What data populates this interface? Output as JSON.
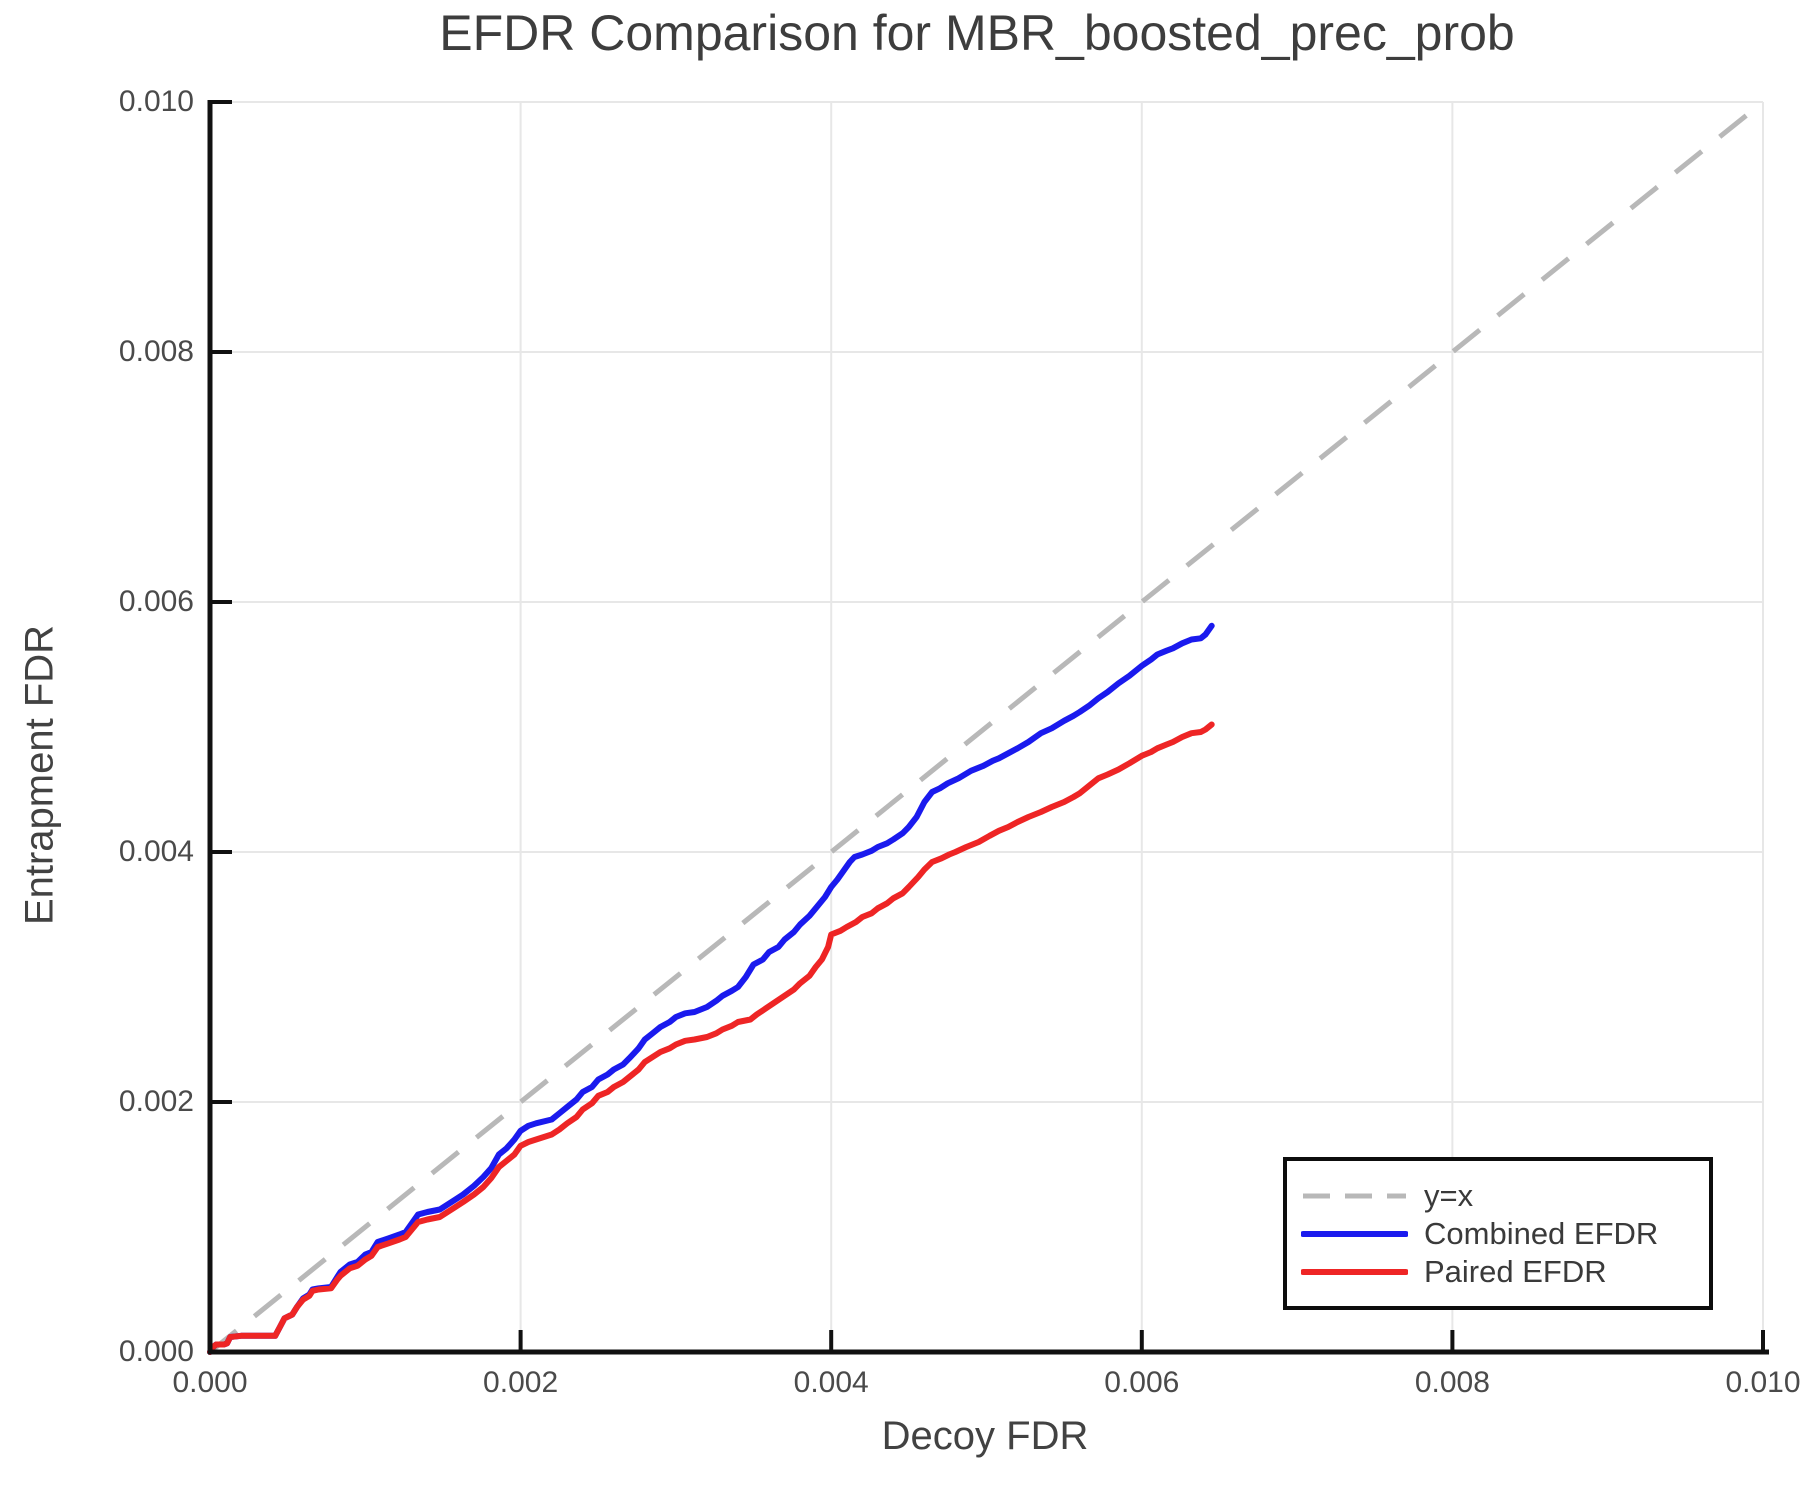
{
  "chart_data": {
    "type": "line",
    "title": "EFDR Comparison for MBR_boosted_prec_prob",
    "xlabel": "Decoy FDR",
    "ylabel": "Entrapment FDR",
    "xlim": [
      0.0,
      0.01
    ],
    "ylim": [
      0.0,
      0.01
    ],
    "xticks": [
      0.0,
      0.002,
      0.004,
      0.006,
      0.008,
      0.01
    ],
    "xtick_labels": [
      "0.000",
      "0.002",
      "0.004",
      "0.006",
      "0.008",
      "0.010"
    ],
    "yticks": [
      0.0,
      0.002,
      0.004,
      0.006,
      0.008,
      0.01
    ],
    "ytick_labels": [
      "0.000",
      "0.002",
      "0.004",
      "0.006",
      "0.008",
      "0.010"
    ],
    "grid": true,
    "legend_position": "lower right",
    "colors": {
      "grid": "#e7e7e7",
      "axis": "#111111",
      "text": "#4a4a4a"
    },
    "reference_line": {
      "label": "y=x",
      "style": "dashed",
      "color": "#b8b8b8",
      "from": [
        0.0,
        0.0
      ],
      "to": [
        0.01,
        0.01
      ]
    },
    "legend": [
      {
        "label": "y=x",
        "color": "#b8b8b8",
        "dashed": true
      },
      {
        "label": "Combined EFDR",
        "color": "#1a1aee",
        "dashed": false
      },
      {
        "label": "Paired EFDR",
        "color": "#ee2525",
        "dashed": false
      }
    ],
    "series": [
      {
        "name": "Combined EFDR",
        "color": "#1a1aee",
        "points": [
          [
            0.0,
            0.0
          ],
          [
            2e-05,
            4e-05
          ],
          [
            4e-05,
            6e-05
          ],
          [
            9e-05,
            6e-05
          ],
          [
            0.00011,
            7e-05
          ],
          [
            0.00013,
            0.00012
          ],
          [
            0.0002,
            0.00013
          ],
          [
            0.00042,
            0.00013
          ],
          [
            0.00045,
            0.0002
          ],
          [
            0.00048,
            0.00027
          ],
          [
            0.00053,
            0.0003
          ],
          [
            0.00056,
            0.00036
          ],
          [
            0.0006,
            0.00043
          ],
          [
            0.00064,
            0.00046
          ],
          [
            0.00066,
            0.0005
          ],
          [
            0.0007,
            0.00051
          ],
          [
            0.00078,
            0.00052
          ],
          [
            0.00082,
            0.0006
          ],
          [
            0.00084,
            0.00064
          ],
          [
            0.0009,
            0.0007
          ],
          [
            0.00095,
            0.00072
          ],
          [
            0.001,
            0.00078
          ],
          [
            0.00104,
            0.0008
          ],
          [
            0.00108,
            0.00088
          ],
          [
            0.00115,
            0.00091
          ],
          [
            0.00122,
            0.00094
          ],
          [
            0.00126,
            0.00096
          ],
          [
            0.0013,
            0.00103
          ],
          [
            0.00134,
            0.0011
          ],
          [
            0.0014,
            0.00112
          ],
          [
            0.00148,
            0.00114
          ],
          [
            0.00153,
            0.00118
          ],
          [
            0.00158,
            0.00122
          ],
          [
            0.00163,
            0.00126
          ],
          [
            0.0017,
            0.00133
          ],
          [
            0.00176,
            0.0014
          ],
          [
            0.00181,
            0.00147
          ],
          [
            0.00186,
            0.00158
          ],
          [
            0.00191,
            0.00163
          ],
          [
            0.00196,
            0.0017
          ],
          [
            0.002,
            0.00177
          ],
          [
            0.00205,
            0.00181
          ],
          [
            0.0021,
            0.00183
          ],
          [
            0.0022,
            0.00186
          ],
          [
            0.00225,
            0.00191
          ],
          [
            0.0023,
            0.00196
          ],
          [
            0.00236,
            0.00202
          ],
          [
            0.0024,
            0.00208
          ],
          [
            0.00246,
            0.00212
          ],
          [
            0.0025,
            0.00218
          ],
          [
            0.00256,
            0.00222
          ],
          [
            0.0026,
            0.00226
          ],
          [
            0.00266,
            0.0023
          ],
          [
            0.0027,
            0.00235
          ],
          [
            0.00276,
            0.00243
          ],
          [
            0.0028,
            0.0025
          ],
          [
            0.00285,
            0.00255
          ],
          [
            0.0029,
            0.0026
          ],
          [
            0.00296,
            0.00264
          ],
          [
            0.003,
            0.00268
          ],
          [
            0.00306,
            0.00271
          ],
          [
            0.00312,
            0.00272
          ],
          [
            0.0032,
            0.00276
          ],
          [
            0.00326,
            0.00281
          ],
          [
            0.0033,
            0.00285
          ],
          [
            0.00336,
            0.00289
          ],
          [
            0.0034,
            0.00292
          ],
          [
            0.00345,
            0.003
          ],
          [
            0.0035,
            0.0031
          ],
          [
            0.00356,
            0.00314
          ],
          [
            0.0036,
            0.0032
          ],
          [
            0.00366,
            0.00324
          ],
          [
            0.0037,
            0.0033
          ],
          [
            0.00376,
            0.00336
          ],
          [
            0.0038,
            0.00342
          ],
          [
            0.00386,
            0.00349
          ],
          [
            0.0039,
            0.00355
          ],
          [
            0.00396,
            0.00364
          ],
          [
            0.004,
            0.00372
          ],
          [
            0.00404,
            0.00378
          ],
          [
            0.00408,
            0.00385
          ],
          [
            0.00412,
            0.00392
          ],
          [
            0.00415,
            0.00396
          ],
          [
            0.0042,
            0.00398
          ],
          [
            0.00426,
            0.00401
          ],
          [
            0.0043,
            0.00404
          ],
          [
            0.00436,
            0.00407
          ],
          [
            0.0044,
            0.0041
          ],
          [
            0.00446,
            0.00415
          ],
          [
            0.0045,
            0.0042
          ],
          [
            0.00455,
            0.00428
          ],
          [
            0.0046,
            0.0044
          ],
          [
            0.00465,
            0.00448
          ],
          [
            0.0047,
            0.00451
          ],
          [
            0.00475,
            0.00455
          ],
          [
            0.00482,
            0.00459
          ],
          [
            0.0049,
            0.00465
          ],
          [
            0.00498,
            0.00469
          ],
          [
            0.00504,
            0.00473
          ],
          [
            0.00508,
            0.00475
          ],
          [
            0.00514,
            0.00479
          ],
          [
            0.0052,
            0.00483
          ],
          [
            0.00527,
            0.00488
          ],
          [
            0.00535,
            0.00495
          ],
          [
            0.00542,
            0.00499
          ],
          [
            0.0055,
            0.00505
          ],
          [
            0.00556,
            0.00509
          ],
          [
            0.0056,
            0.00512
          ],
          [
            0.00566,
            0.00517
          ],
          [
            0.00572,
            0.00523
          ],
          [
            0.00578,
            0.00528
          ],
          [
            0.00585,
            0.00535
          ],
          [
            0.00592,
            0.00541
          ],
          [
            0.006,
            0.00549
          ],
          [
            0.00606,
            0.00554
          ],
          [
            0.0061,
            0.00558
          ],
          [
            0.00616,
            0.00561
          ],
          [
            0.0062,
            0.00563
          ],
          [
            0.00626,
            0.00567
          ],
          [
            0.00632,
            0.0057
          ],
          [
            0.00638,
            0.00571
          ],
          [
            0.00641,
            0.00574
          ],
          [
            0.00645,
            0.00581
          ]
        ]
      },
      {
        "name": "Paired EFDR",
        "color": "#ee2525",
        "points": [
          [
            0.0,
            0.0
          ],
          [
            2e-05,
            4e-05
          ],
          [
            4e-05,
            6e-05
          ],
          [
            9e-05,
            6e-05
          ],
          [
            0.00011,
            7e-05
          ],
          [
            0.00013,
            0.00012
          ],
          [
            0.0002,
            0.00013
          ],
          [
            0.00042,
            0.00013
          ],
          [
            0.00045,
            0.0002
          ],
          [
            0.00048,
            0.00027
          ],
          [
            0.00053,
            0.0003
          ],
          [
            0.00056,
            0.00036
          ],
          [
            0.0006,
            0.00042
          ],
          [
            0.00064,
            0.00045
          ],
          [
            0.00066,
            0.00049
          ],
          [
            0.0007,
            0.0005
          ],
          [
            0.00078,
            0.00051
          ],
          [
            0.00082,
            0.00058
          ],
          [
            0.00084,
            0.00061
          ],
          [
            0.0009,
            0.00067
          ],
          [
            0.00095,
            0.00069
          ],
          [
            0.001,
            0.00074
          ],
          [
            0.00104,
            0.00077
          ],
          [
            0.00108,
            0.00084
          ],
          [
            0.00115,
            0.00087
          ],
          [
            0.00122,
            0.0009
          ],
          [
            0.00126,
            0.00092
          ],
          [
            0.0013,
            0.00098
          ],
          [
            0.00134,
            0.00104
          ],
          [
            0.0014,
            0.00106
          ],
          [
            0.00148,
            0.00108
          ],
          [
            0.00153,
            0.00112
          ],
          [
            0.00158,
            0.00116
          ],
          [
            0.00163,
            0.0012
          ],
          [
            0.0017,
            0.00126
          ],
          [
            0.00176,
            0.00132
          ],
          [
            0.00181,
            0.00139
          ],
          [
            0.00186,
            0.00148
          ],
          [
            0.00191,
            0.00153
          ],
          [
            0.00196,
            0.00158
          ],
          [
            0.002,
            0.00165
          ],
          [
            0.00205,
            0.00168
          ],
          [
            0.0021,
            0.0017
          ],
          [
            0.0022,
            0.00174
          ],
          [
            0.00225,
            0.00178
          ],
          [
            0.0023,
            0.00183
          ],
          [
            0.00236,
            0.00188
          ],
          [
            0.0024,
            0.00194
          ],
          [
            0.00246,
            0.00199
          ],
          [
            0.0025,
            0.00205
          ],
          [
            0.00256,
            0.00208
          ],
          [
            0.0026,
            0.00212
          ],
          [
            0.00266,
            0.00216
          ],
          [
            0.0027,
            0.0022
          ],
          [
            0.00276,
            0.00226
          ],
          [
            0.0028,
            0.00232
          ],
          [
            0.00285,
            0.00236
          ],
          [
            0.0029,
            0.0024
          ],
          [
            0.00296,
            0.00243
          ],
          [
            0.003,
            0.00246
          ],
          [
            0.00306,
            0.00249
          ],
          [
            0.00312,
            0.0025
          ],
          [
            0.0032,
            0.00252
          ],
          [
            0.00326,
            0.00255
          ],
          [
            0.0033,
            0.00258
          ],
          [
            0.00336,
            0.00261
          ],
          [
            0.0034,
            0.00264
          ],
          [
            0.00348,
            0.00266
          ],
          [
            0.00352,
            0.0027
          ],
          [
            0.00358,
            0.00275
          ],
          [
            0.00364,
            0.0028
          ],
          [
            0.0037,
            0.00285
          ],
          [
            0.00376,
            0.0029
          ],
          [
            0.0038,
            0.00295
          ],
          [
            0.00386,
            0.00301
          ],
          [
            0.0039,
            0.00308
          ],
          [
            0.00394,
            0.00314
          ],
          [
            0.00398,
            0.00324
          ],
          [
            0.004,
            0.00334
          ],
          [
            0.00406,
            0.00337
          ],
          [
            0.0041,
            0.0034
          ],
          [
            0.00416,
            0.00344
          ],
          [
            0.0042,
            0.00348
          ],
          [
            0.00426,
            0.00351
          ],
          [
            0.0043,
            0.00355
          ],
          [
            0.00436,
            0.00359
          ],
          [
            0.0044,
            0.00363
          ],
          [
            0.00446,
            0.00367
          ],
          [
            0.0045,
            0.00372
          ],
          [
            0.00456,
            0.0038
          ],
          [
            0.0046,
            0.00386
          ],
          [
            0.00465,
            0.00392
          ],
          [
            0.00471,
            0.00395
          ],
          [
            0.00476,
            0.00398
          ],
          [
            0.0048,
            0.004
          ],
          [
            0.00487,
            0.00404
          ],
          [
            0.00495,
            0.00408
          ],
          [
            0.00502,
            0.00413
          ],
          [
            0.00508,
            0.00417
          ],
          [
            0.00514,
            0.0042
          ],
          [
            0.0052,
            0.00424
          ],
          [
            0.00527,
            0.00428
          ],
          [
            0.00535,
            0.00432
          ],
          [
            0.00542,
            0.00436
          ],
          [
            0.0055,
            0.0044
          ],
          [
            0.00556,
            0.00444
          ],
          [
            0.0056,
            0.00447
          ],
          [
            0.00566,
            0.00453
          ],
          [
            0.00572,
            0.00459
          ],
          [
            0.00578,
            0.00462
          ],
          [
            0.00585,
            0.00466
          ],
          [
            0.00592,
            0.00471
          ],
          [
            0.006,
            0.00477
          ],
          [
            0.00606,
            0.0048
          ],
          [
            0.0061,
            0.00483
          ],
          [
            0.00616,
            0.00486
          ],
          [
            0.0062,
            0.00488
          ],
          [
            0.00626,
            0.00492
          ],
          [
            0.00632,
            0.00495
          ],
          [
            0.00638,
            0.00496
          ],
          [
            0.00641,
            0.00498
          ],
          [
            0.00645,
            0.00502
          ]
        ]
      }
    ]
  }
}
